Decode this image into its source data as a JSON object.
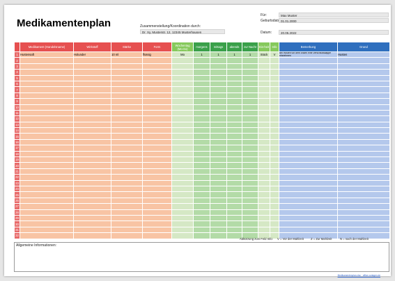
{
  "title": "Medikamentenplan",
  "header": {
    "coordination_label": "Zusammenstellung/Koordination durch:",
    "coordination_value": "Dr. Xy, Musterstr. 12, 12345 Musterhausen",
    "for_label": "Für:",
    "for_value": "Max Muster",
    "birth_label": "Geburtsdatum:",
    "birth_value": "01.01.2000",
    "date_label": "Datum:",
    "date_value": "20.05.2022"
  },
  "columns": {
    "medikament": "Medikament (Handelsname)",
    "wirkstoff": "Wirkstoff",
    "staerke": "Stärke",
    "form": "Form",
    "wochentag": "Wochentag (Mo-So)",
    "morgens": "morgens",
    "mittags": "mittags",
    "abends": "abends",
    "zur_nacht": "zur Nacht",
    "einheit": "Ein-heit",
    "info": "Info",
    "bemerkung": "Bemerkung",
    "grund": "Grund"
  },
  "first_row": {
    "medikament": "Hustensaft",
    "wirkstoff": "Holunder",
    "staerke": "10 ml",
    "form": "flüssig",
    "wochentag": "Mo",
    "morgens": "1",
    "mittags": "1",
    "abends": "1",
    "zur_nacht": "1",
    "einheit": "Stück",
    "info": "V",
    "bemerkung": "Bei Husten vor dem Essen eine Verschlusskappe einnehmen",
    "grund": "Husten"
  },
  "row_numbers": [
    "1",
    "2",
    "3",
    "4",
    "5",
    "6",
    "7",
    "8",
    "9",
    "10",
    "11",
    "12",
    "13",
    "14",
    "15",
    "16",
    "17",
    "18",
    "19",
    "20",
    "21",
    "22",
    "23",
    "24",
    "25",
    "26",
    "27",
    "28",
    "29",
    "30",
    "31",
    "32"
  ],
  "legend": {
    "title": "Abkürzung zum Feld Info:",
    "v": "V = Vor der Mahlzeit",
    "z": "Z = Zur Mahlzeit",
    "n": "N = nach der Mahlzeit"
  },
  "info_label": "Allgemeine Informationen:",
  "footer_link": "Medikamentenplan.xlsx · office-vorlagen.de",
  "colors": {
    "header_red": "#e65050",
    "header_light_green": "#86c95c",
    "header_green": "#3aa04a",
    "header_blue": "#2f6fbe",
    "cell_orange": "#f8c4a4",
    "cell_light_green": "#d5e8c5",
    "cell_green": "#b3dba7",
    "cell_blue": "#b4c8ec"
  }
}
